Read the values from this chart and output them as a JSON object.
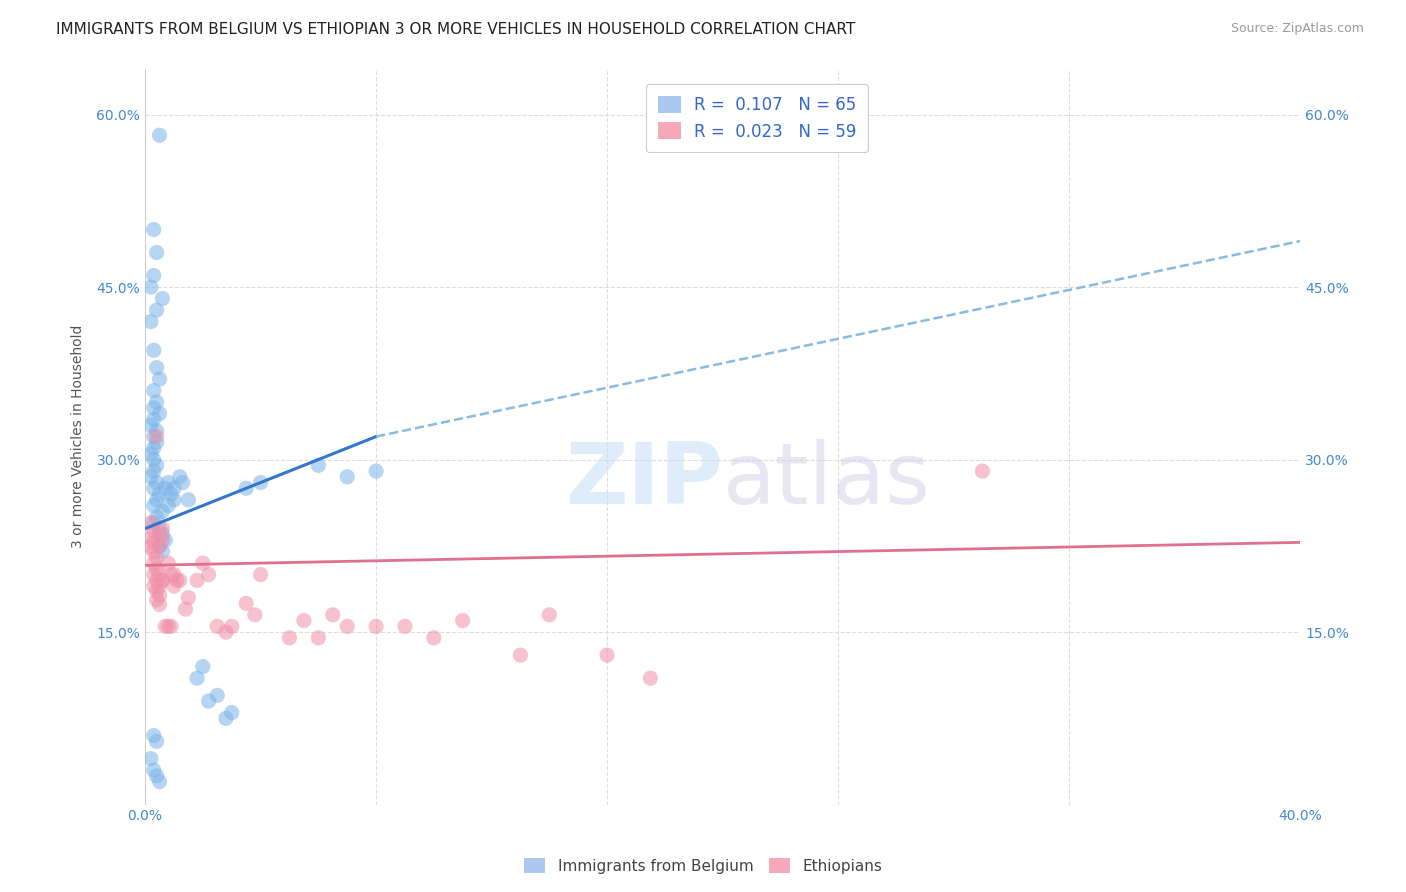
{
  "title": "IMMIGRANTS FROM BELGIUM VS ETHIOPIAN 3 OR MORE VEHICLES IN HOUSEHOLD CORRELATION CHART",
  "source": "Source: ZipAtlas.com",
  "ylabel": "3 or more Vehicles in Household",
  "xlim": [
    0.0,
    0.4
  ],
  "ylim": [
    0.0,
    0.64
  ],
  "yticks": [
    0.15,
    0.3,
    0.45,
    0.6
  ],
  "ytick_labels": [
    "15.0%",
    "30.0%",
    "45.0%",
    "60.0%"
  ],
  "legend_entries": [
    {
      "label": "Immigrants from Belgium",
      "R": "0.107",
      "N": "65",
      "color": "#adc8f0"
    },
    {
      "label": "Ethiopians",
      "R": "0.023",
      "N": "59",
      "color": "#f4a8b8"
    }
  ],
  "blue_scatter_x": [
    0.005,
    0.003,
    0.004,
    0.003,
    0.002,
    0.006,
    0.004,
    0.002,
    0.003,
    0.004,
    0.005,
    0.003,
    0.004,
    0.003,
    0.005,
    0.003,
    0.002,
    0.004,
    0.003,
    0.004,
    0.003,
    0.002,
    0.003,
    0.004,
    0.003,
    0.002,
    0.004,
    0.003,
    0.005,
    0.004,
    0.003,
    0.006,
    0.004,
    0.003,
    0.005,
    0.006,
    0.007,
    0.005,
    0.006,
    0.008,
    0.007,
    0.009,
    0.01,
    0.008,
    0.012,
    0.01,
    0.015,
    0.013,
    0.02,
    0.018,
    0.025,
    0.022,
    0.03,
    0.028,
    0.002,
    0.003,
    0.004,
    0.005,
    0.003,
    0.004,
    0.04,
    0.035,
    0.08,
    0.07,
    0.06
  ],
  "blue_scatter_y": [
    0.582,
    0.5,
    0.48,
    0.46,
    0.45,
    0.44,
    0.43,
    0.42,
    0.395,
    0.38,
    0.37,
    0.36,
    0.35,
    0.345,
    0.34,
    0.335,
    0.33,
    0.325,
    0.32,
    0.315,
    0.31,
    0.305,
    0.3,
    0.295,
    0.29,
    0.285,
    0.28,
    0.275,
    0.27,
    0.265,
    0.26,
    0.255,
    0.25,
    0.245,
    0.24,
    0.235,
    0.23,
    0.225,
    0.22,
    0.28,
    0.275,
    0.27,
    0.265,
    0.26,
    0.285,
    0.275,
    0.265,
    0.28,
    0.12,
    0.11,
    0.095,
    0.09,
    0.08,
    0.075,
    0.04,
    0.03,
    0.025,
    0.02,
    0.06,
    0.055,
    0.28,
    0.275,
    0.29,
    0.285,
    0.295
  ],
  "pink_scatter_x": [
    0.002,
    0.003,
    0.002,
    0.003,
    0.002,
    0.003,
    0.004,
    0.003,
    0.004,
    0.003,
    0.004,
    0.003,
    0.004,
    0.005,
    0.004,
    0.005,
    0.004,
    0.005,
    0.006,
    0.005,
    0.006,
    0.005,
    0.006,
    0.005,
    0.006,
    0.008,
    0.007,
    0.009,
    0.008,
    0.01,
    0.009,
    0.011,
    0.01,
    0.012,
    0.015,
    0.014,
    0.018,
    0.02,
    0.022,
    0.025,
    0.028,
    0.03,
    0.035,
    0.038,
    0.04,
    0.05,
    0.055,
    0.06,
    0.065,
    0.07,
    0.08,
    0.09,
    0.1,
    0.11,
    0.13,
    0.14,
    0.16,
    0.175,
    0.29
  ],
  "pink_scatter_y": [
    0.245,
    0.238,
    0.232,
    0.228,
    0.224,
    0.22,
    0.215,
    0.21,
    0.205,
    0.2,
    0.195,
    0.19,
    0.186,
    0.182,
    0.178,
    0.174,
    0.32,
    0.225,
    0.24,
    0.235,
    0.23,
    0.2,
    0.195,
    0.19,
    0.195,
    0.21,
    0.155,
    0.2,
    0.155,
    0.2,
    0.155,
    0.195,
    0.19,
    0.195,
    0.18,
    0.17,
    0.195,
    0.21,
    0.2,
    0.155,
    0.15,
    0.155,
    0.175,
    0.165,
    0.2,
    0.145,
    0.16,
    0.145,
    0.165,
    0.155,
    0.155,
    0.155,
    0.145,
    0.16,
    0.13,
    0.165,
    0.13,
    0.11,
    0.29
  ],
  "blue_color": "#7ab4e8",
  "pink_color": "#f090a8",
  "blue_solid_line": {
    "x0": 0.0,
    "x1": 0.08,
    "y0": 0.24,
    "y1": 0.32
  },
  "blue_dashed_line": {
    "x0": 0.08,
    "x1": 0.4,
    "y0": 0.32,
    "y1": 0.49
  },
  "pink_line": {
    "x0": 0.0,
    "x1": 0.4,
    "y0": 0.208,
    "y1": 0.228
  },
  "watermark_zip": "ZIP",
  "watermark_atlas": "atlas",
  "background_color": "#ffffff",
  "grid_color": "#dddddd",
  "title_fontsize": 11,
  "axis_label_fontsize": 10,
  "tick_label_color": "#4488cc"
}
